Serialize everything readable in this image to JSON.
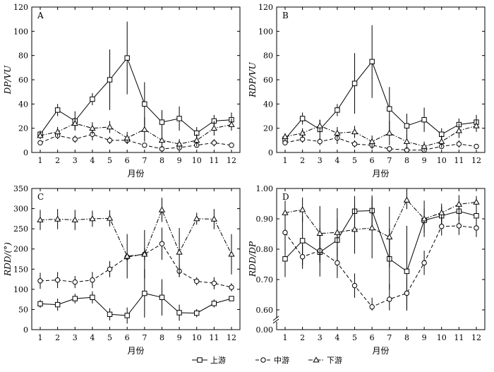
{
  "chart_data": [
    {
      "panel": "A",
      "type": "line",
      "ylabel": "DP/VU",
      "xlabel": "月份",
      "categories": [
        "1",
        "2",
        "3",
        "4",
        "5",
        "6",
        "7",
        "8",
        "9",
        "10",
        "11",
        "12"
      ],
      "ylim": [
        0,
        120
      ],
      "yticks": [
        0,
        20,
        40,
        60,
        80,
        100,
        120
      ],
      "series": [
        {
          "name": "上游",
          "marker": "square",
          "dash": "solid",
          "values": [
            15,
            35,
            26,
            44,
            60,
            78,
            40,
            25,
            28,
            16,
            26,
            27
          ],
          "errors": [
            3,
            5,
            8,
            5,
            25,
            30,
            18,
            10,
            10,
            5,
            5,
            6
          ]
        },
        {
          "name": "中游",
          "marker": "circle",
          "dash": "dashed",
          "values": [
            8,
            14,
            11,
            15,
            10,
            10,
            6,
            3,
            4,
            6,
            8,
            6
          ],
          "errors": [
            2,
            3,
            3,
            5,
            3,
            3,
            2,
            2,
            2,
            2,
            3,
            1
          ]
        },
        {
          "name": "下游",
          "marker": "triangle",
          "dash": "dashdot",
          "values": [
            14,
            17,
            24,
            20,
            21,
            12,
            19,
            10,
            7,
            10,
            20,
            23
          ],
          "errors": [
            3,
            4,
            5,
            5,
            5,
            5,
            10,
            6,
            4,
            5,
            6,
            5
          ]
        }
      ]
    },
    {
      "panel": "B",
      "type": "line",
      "ylabel": "RDP/VU",
      "xlabel": "月份",
      "categories": [
        "1",
        "2",
        "3",
        "4",
        "5",
        "6",
        "7",
        "8",
        "9",
        "10",
        "11",
        "12"
      ],
      "ylim": [
        0,
        120
      ],
      "yticks": [
        0,
        20,
        40,
        60,
        80,
        100,
        120
      ],
      "series": [
        {
          "name": "上游",
          "marker": "square",
          "dash": "solid",
          "values": [
            11,
            28,
            19,
            35,
            57,
            75,
            36,
            22,
            27,
            15,
            23,
            25
          ],
          "errors": [
            3,
            5,
            8,
            5,
            25,
            30,
            18,
            10,
            10,
            5,
            5,
            6
          ]
        },
        {
          "name": "中游",
          "marker": "circle",
          "dash": "dashed",
          "values": [
            8,
            11,
            9,
            12,
            7,
            6,
            3,
            2,
            2,
            5,
            7,
            5
          ],
          "errors": [
            2,
            3,
            3,
            5,
            3,
            3,
            2,
            2,
            2,
            2,
            3,
            1
          ]
        },
        {
          "name": "下游",
          "marker": "triangle",
          "dash": "dashdot",
          "values": [
            13,
            16,
            22,
            16,
            17,
            9,
            16,
            9,
            5,
            9,
            18,
            22
          ],
          "errors": [
            3,
            4,
            5,
            5,
            5,
            5,
            10,
            6,
            4,
            5,
            6,
            5
          ]
        }
      ]
    },
    {
      "panel": "C",
      "type": "line",
      "ylabel": "RDD/(°)",
      "xlabel": "月份",
      "categories": [
        "1",
        "2",
        "3",
        "4",
        "5",
        "6",
        "7",
        "8",
        "9",
        "10",
        "11",
        "12"
      ],
      "ylim": [
        0,
        350
      ],
      "yticks": [
        0,
        50,
        100,
        150,
        200,
        250,
        300,
        350
      ],
      "series": [
        {
          "name": "上游",
          "marker": "square",
          "dash": "solid",
          "values": [
            64,
            62,
            77,
            80,
            38,
            35,
            90,
            80,
            42,
            41,
            65,
            77
          ],
          "errors": [
            10,
            15,
            12,
            15,
            15,
            20,
            60,
            45,
            20,
            10,
            10,
            5
          ]
        },
        {
          "name": "中游",
          "marker": "circle",
          "dash": "dashed",
          "values": [
            121,
            123,
            118,
            123,
            150,
            180,
            187,
            213,
            145,
            120,
            115,
            105
          ],
          "errors": [
            20,
            20,
            15,
            20,
            20,
            10,
            15,
            40,
            15,
            10,
            15,
            10
          ]
        },
        {
          "name": "下游",
          "marker": "triangle",
          "dash": "dashdot",
          "values": [
            272,
            274,
            272,
            275,
            276,
            182,
            187,
            297,
            192,
            275,
            274,
            187
          ],
          "errors": [
            25,
            25,
            25,
            20,
            20,
            55,
            60,
            30,
            60,
            15,
            25,
            50
          ]
        }
      ]
    },
    {
      "panel": "D",
      "type": "line",
      "ylabel": "RDD/DP",
      "xlabel": "月份",
      "categories": [
        "1",
        "2",
        "3",
        "4",
        "5",
        "6",
        "7",
        "8",
        "9",
        "10",
        "11",
        "12"
      ],
      "ylim": [
        0.6,
        1.0
      ],
      "axis_break": true,
      "yticks": [
        0.0,
        0.6,
        0.7,
        0.8,
        0.9,
        1.0
      ],
      "ytick_labels": [
        "0.00",
        "0.60",
        "0.70",
        "0.80",
        "0.90",
        "1.00"
      ],
      "series": [
        {
          "name": "上游",
          "marker": "square",
          "dash": "solid",
          "values": [
            0.768,
            0.828,
            0.79,
            0.83,
            0.925,
            0.927,
            0.768,
            0.727,
            0.895,
            0.91,
            0.925,
            0.91
          ],
          "errors": [
            0.06,
            0.08,
            0.08,
            0.07,
            0.05,
            0.05,
            0.1,
            0.15,
            0.04,
            0.03,
            0.03,
            0.03
          ]
        },
        {
          "name": "中游",
          "marker": "circle",
          "dash": "dashed",
          "values": [
            0.855,
            0.775,
            0.795,
            0.755,
            0.68,
            0.61,
            0.635,
            0.655,
            0.755,
            0.875,
            0.877,
            0.87
          ],
          "errors": [
            0.04,
            0.04,
            0.04,
            0.05,
            0.04,
            0.03,
            0.05,
            0.05,
            0.04,
            0.03,
            0.03,
            0.03
          ]
        },
        {
          "name": "下游",
          "marker": "triangle",
          "dash": "dashdot",
          "values": [
            0.92,
            0.93,
            0.852,
            0.855,
            0.865,
            0.87,
            0.84,
            0.962,
            0.9,
            0.92,
            0.948,
            0.955
          ],
          "errors": [
            0.04,
            0.04,
            0.09,
            0.08,
            0.08,
            0.1,
            0.1,
            0.03,
            0.06,
            0.03,
            0.03,
            0.02
          ]
        }
      ]
    }
  ],
  "legend": {
    "placement": "bottom-center",
    "items": [
      {
        "label": "上游",
        "marker": "square",
        "dash": "solid"
      },
      {
        "label": "中游",
        "marker": "circle",
        "dash": "dashed"
      },
      {
        "label": "下游",
        "marker": "triangle",
        "dash": "dashdot"
      }
    ]
  },
  "colors": {
    "ink": "#000000",
    "background": "#ffffff"
  }
}
